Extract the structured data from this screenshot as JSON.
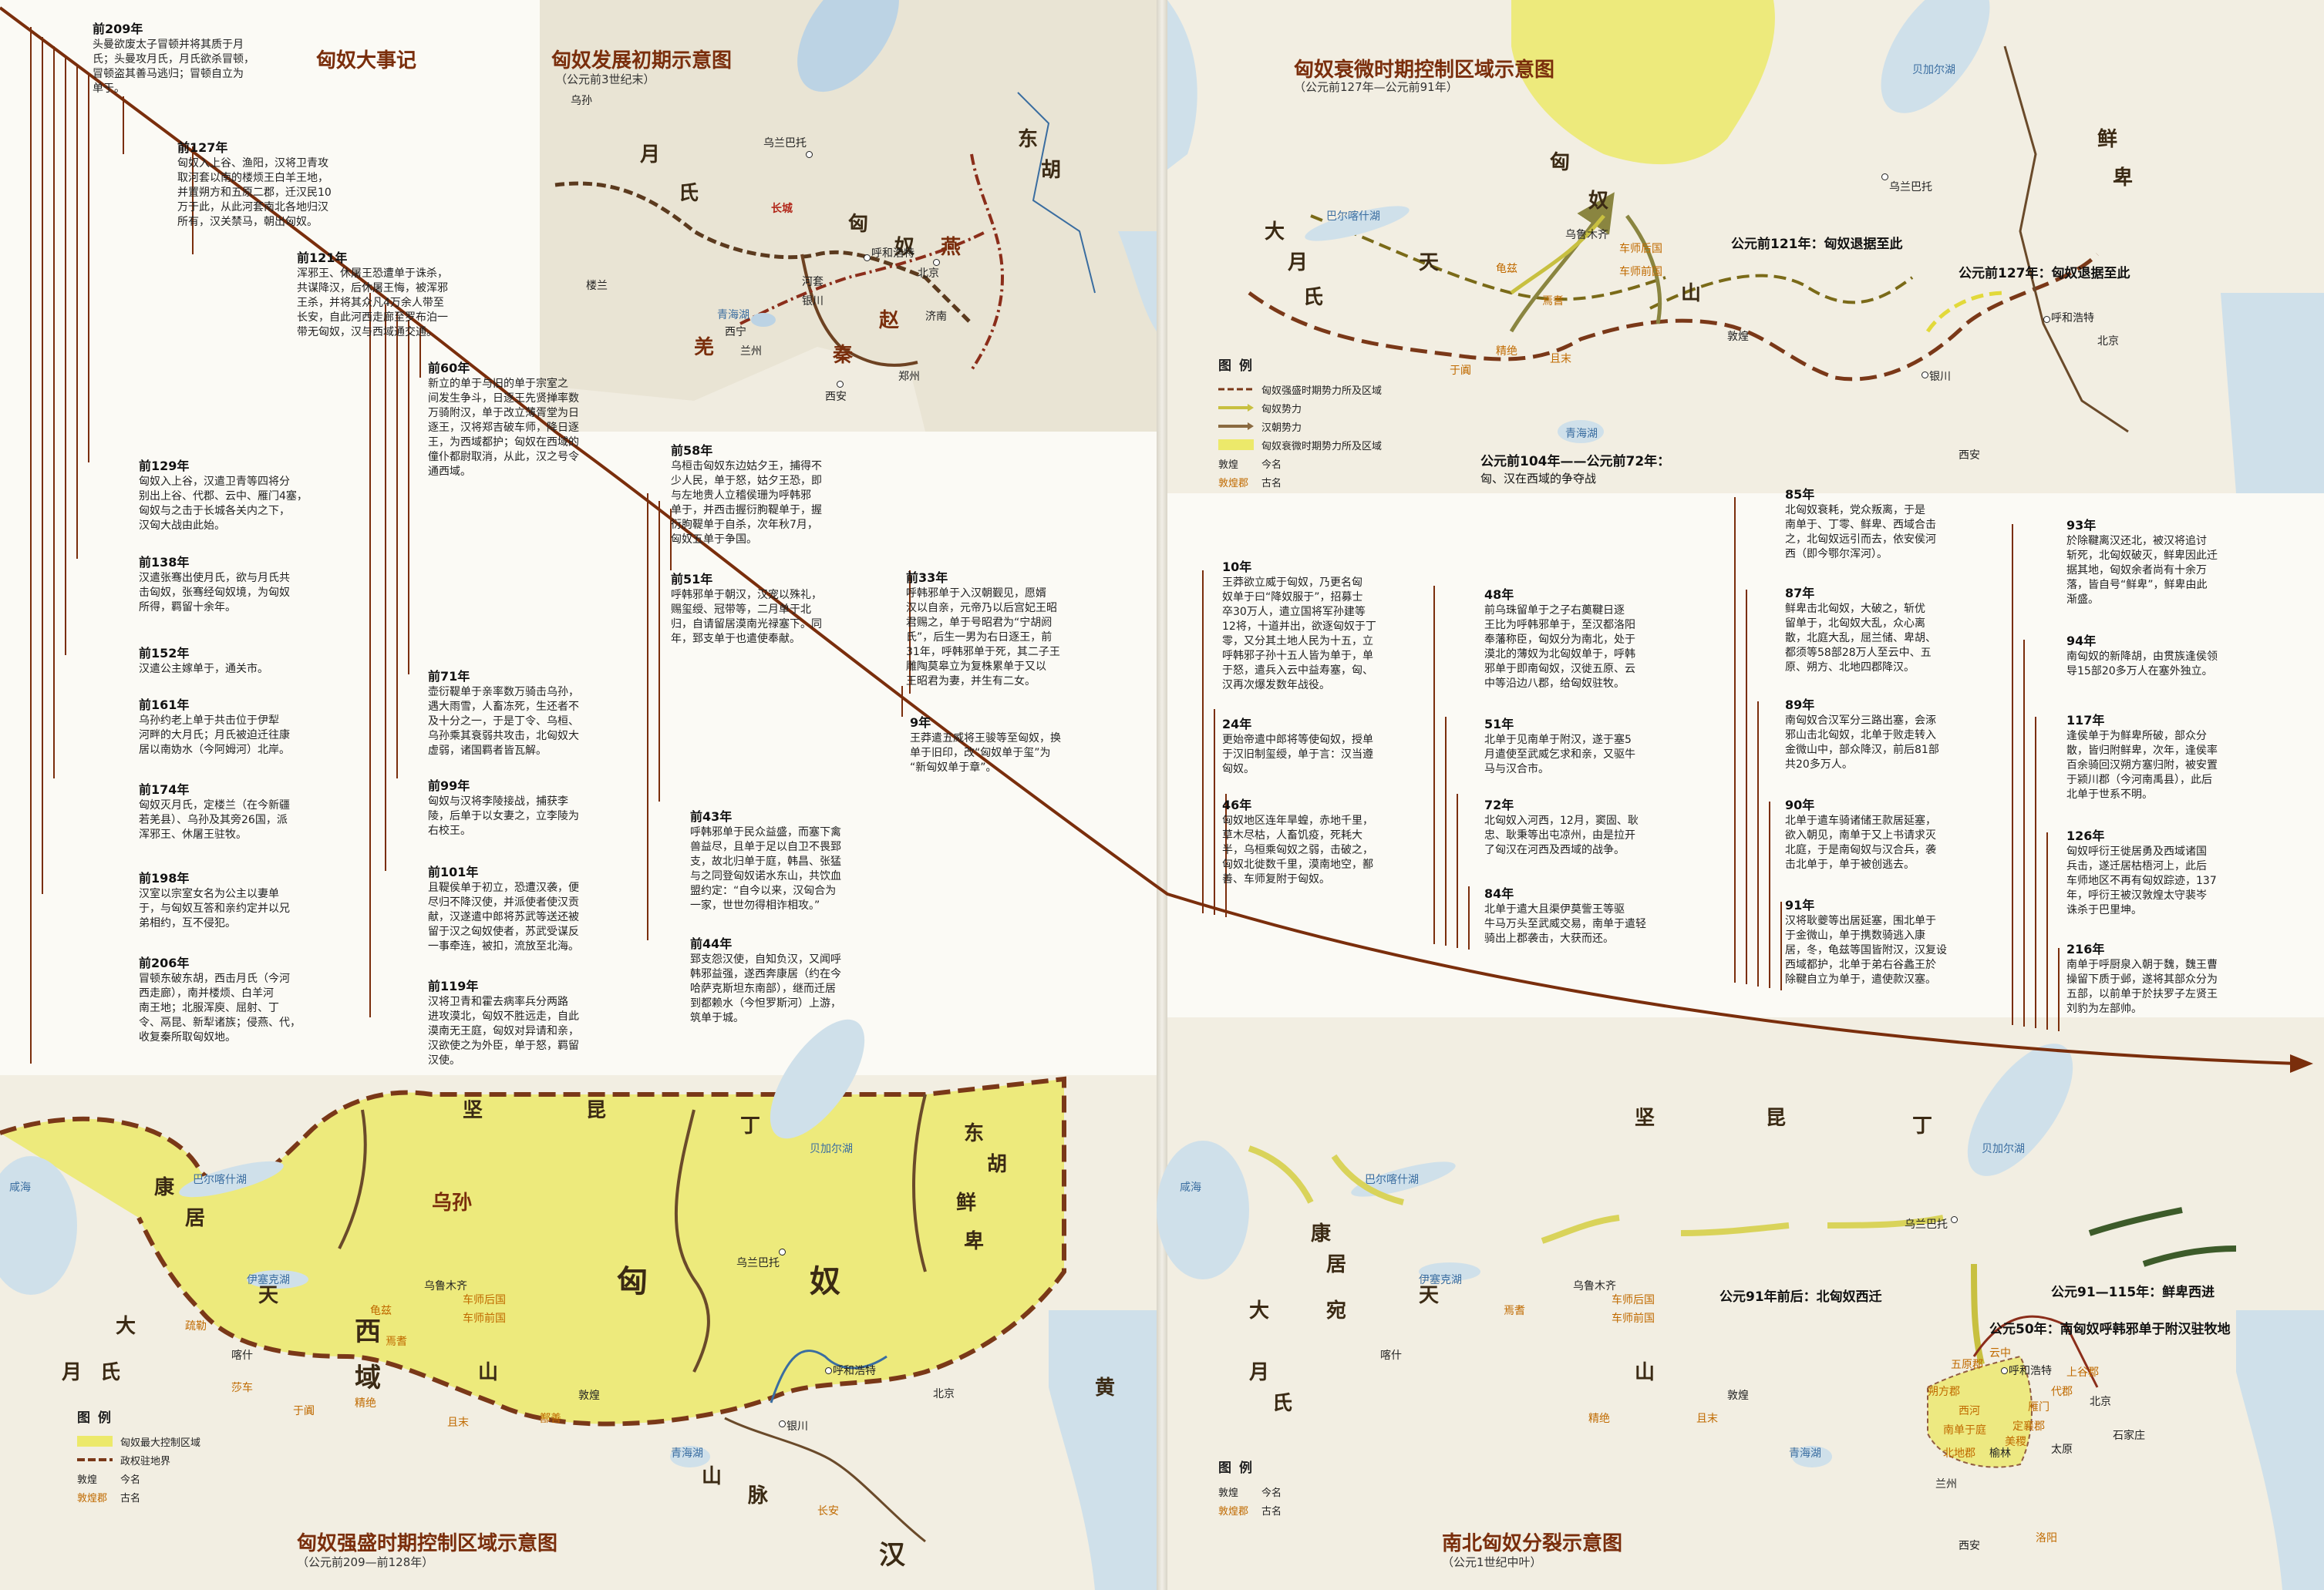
{
  "timeline": {
    "title": "匈奴大事记",
    "events": [
      {
        "year": "前209年",
        "text": "头曼欲废太子冒顿并将其质于月\n氏；头曼攻月氏，月氏欲杀冒顿，\n冒顿盗其善马逃归；冒顿自立为\n单于。"
      },
      {
        "year": "前127年",
        "text": "匈奴入上谷、渔阳，汉将卫青攻\n取河套以南的楼烦王白羊王地，\n并置朔方和五原二郡，迁汉民10\n万于此，从此河套南北各地归汉\n所有，汉关禁马，朝出匈奴。"
      },
      {
        "year": "前121年",
        "text": "浑邪王、休屠王恐遭单于诛杀，\n共谋降汉，后休屠王悔，被浑邪\n王杀，并将其众凡4万余人带至\n长安，自此河西走廊至罗布泊一\n带无匈奴，汉与西域通交通。"
      },
      {
        "year": "前129年",
        "text": "匈奴入上谷，汉遣卫青等四将分\n别出上谷、代郡、云中、雁门4塞，\n匈奴与之击于长城各关内之下，\n汉匈大战由此始。"
      },
      {
        "year": "前138年",
        "text": "汉遣张骞出使月氏，欲与月氏共\n击匈奴，张骞经匈奴境，为匈奴\n所得，羁留十余年。"
      },
      {
        "year": "前152年",
        "text": "汉遣公主嫁单于，通关市。"
      },
      {
        "year": "前161年",
        "text": "乌孙约老上单于共击位于伊犁\n河畔的大月氏；月氏被迫迁往康\n居以南妫水（今阿姆河）北岸。"
      },
      {
        "year": "前174年",
        "text": "匈奴灭月氏，定楼兰（在今新疆\n若羌县）、乌孙及其旁26国，派\n浑邪王、休屠王驻牧。"
      },
      {
        "year": "前198年",
        "text": "汉室以宗室女名为公主以妻单\n于，与匈奴互答和亲约定并以兄\n弟相约，互不侵犯。"
      },
      {
        "year": "前206年",
        "text": "冒顿东破东胡，西击月氏（今河\n西走廊），南并楼烦、白羊河\n南王地；北服浑庾、屈射、丁\n令、鬲昆、新犁诸族；侵燕、代，\n收复秦所取匈奴地。"
      },
      {
        "year": "前60年",
        "text": "新立的单于与旧的单于宗室之\n间发生争斗，日逐王先贤掸率数\n万骑附汉，单于改立薄胥堂为日\n逐王，汉将郑吉破车师，降日逐\n王，为西域都护；匈奴在西域的\n僮仆都尉取消，从此，汉之号令\n通西域。"
      },
      {
        "year": "前71年",
        "text": "壶衍鞮单于亲率数万骑击乌孙，\n遇大雨雪，人畜冻死，生还者不\n及十分之一，于是丁令、乌桓、\n乌孙乘其衰弱共攻击，北匈奴大\n虚弱，诸国羁者皆瓦解。"
      },
      {
        "year": "前99年",
        "text": "匈奴与汉将李陵接战，捕获李\n陵，后单于以女妻之，立李陵为\n右校王。"
      },
      {
        "year": "前101年",
        "text": "且鞮侯单于初立，恐遭汉袭，便\n尽归不降汉使，并派使者使汉贡\n献，汉遂遣中郎将苏武等送还被\n留于汉之匈奴使者，苏武受谋反\n一事牵连，被扣，流放至北海。"
      },
      {
        "year": "前119年",
        "text": "汉将卫青和霍去病率兵分两路\n进攻漠北，匈奴不胜远走，自此\n漠南无王庭，匈奴对异请和亲，\n汉欲使之为外臣，单于怒，羁留\n汉使。"
      },
      {
        "year": "前58年",
        "text": "乌桓击匈奴东边姑夕王，捕得不\n少人民，单于怒，姑夕王恐，即\n与左地贵人立稽侯珊为呼韩邪\n单于，并西击握衍朐鞮单于，握\n衍朐鞮单于自杀，次年秋7月，\n匈奴五单于争国。"
      },
      {
        "year": "前51年",
        "text": "呼韩邪单于朝汉，汉宠以殊礼，\n赐玺绶、冠带等，二月单于北\n归，自请留居漠南光禄塞下。同\n年，郅支单于也遣使奉献。"
      },
      {
        "year": "前43年",
        "text": "呼韩邪单于民众益盛，而塞下禽\n兽益尽，且单于足以自卫不畏郅\n支，故北归单于庭，韩昌、张猛\n与之同登匈奴诺水东山，共饮血\n盟约定：“自今以来，汉匈合为\n一家，世世勿得相诈相攻。”"
      },
      {
        "year": "前44年",
        "text": "郅支怨汉使，自知负汉，又闻呼\n韩邪益强，遂西奔康居（约在今\n哈萨克斯坦东南部），继而迁居\n到都赖水（今怛罗斯河）上游，\n筑单于城。"
      },
      {
        "year": "前33年",
        "text": "呼韩邪单于入汉朝觐见，愿婿\n汉以自亲，元帝乃以后宫妃王昭\n君赐之，单于号昭君为“宁胡阏\n氏”，后生一男为右日逐王，前\n31年，呼韩邪单于死，其二子王\n雕陶莫皋立为复株累单于又以\n王昭君为妻，并生有二女。"
      },
      {
        "year": "9年",
        "text": "王莽遣五威将王骏等至匈奴，换\n单于旧印，改“匈奴单于玺”为\n“新匈奴单于章”。"
      },
      {
        "year": "10年",
        "text": "王莽欲立威于匈奴，乃更名匈\n奴单于曰“降奴服于”，招募士\n卒30万人，遣立国将军孙建等\n12将，十道并出，欲逐匈奴于丁\n零，又分其土地人民为十五，立\n呼韩邪子孙十五人皆为单于，单\n于怒，遣兵入云中益寿塞，匈、\n汉再次爆发数年战役。"
      },
      {
        "year": "24年",
        "text": "更始帝遣中郎将等使匈奴，授单\n于汉旧制玺绶，单于言：汉当遵\n匈奴。"
      },
      {
        "year": "46年",
        "text": "匈奴地区连年旱蝗，赤地千里，\n草木尽枯，人畜饥疫，死耗大\n半，乌桓乘匈奴之弱，击破之，\n匈奴北徙数千里，漠南地空，鄯\n善、车师复附于匈奴。"
      },
      {
        "year": "48年",
        "text": "前乌珠留单于之子右薁鞬日逐\n王比为呼韩邪单于，至汉都洛阳\n奉藩称臣，匈奴分为南北，处于\n漠北的薄奴为北匈奴单于，呼韩\n邪单于即南匈奴，汉徙五原、云\n中等沿边八郡，给匈奴驻牧。"
      },
      {
        "year": "51年",
        "text": "北单于见南单于附汉，遂于塞5\n月遣使至武威乞求和亲，又驱牛\n马与汉合市。"
      },
      {
        "year": "72年",
        "text": "北匈奴入河西，12月，窦固、耿\n忠、耿秉等出屯凉州，由是拉开\n了匈汉在河西及西域的战争。"
      },
      {
        "year": "84年",
        "text": "北单于遣大且渠伊莫訾王等驱\n牛马万头至武威交易，南单于遣轻\n骑出上郡袭击，大获而还。"
      },
      {
        "year": "85年",
        "text": "北匈奴衰耗，党众叛离，于是\n南单于、丁零、鲜卑、西域合击\n之，北匈奴远引而去，依安侯河\n西（即今鄂尔浑河）。"
      },
      {
        "year": "87年",
        "text": "鲜卑击北匈奴，大破之，斩优\n留单于，北匈奴大乱，众心离\n散，北庭大乱，屈兰储、卑胡、\n都须等58部28万人至云中、五\n原、朔方、北地四郡降汉。"
      },
      {
        "year": "89年",
        "text": "南匈奴合汉军分三路出塞，会涿\n邪山击北匈奴，北单于败走转入\n金微山中，部众降汉，前后81部\n共20多万人。"
      },
      {
        "year": "90年",
        "text": "北单于遣车骑诸储王款居延塞，\n欲入朝见，南单于又上书请求灭\n北庭，于是南匈奴与汉合兵，袭\n击北单于，单于被创逃去。"
      },
      {
        "year": "91年",
        "text": "汉将耿夔等出居延塞，围北单于\n于金微山，单于携数骑逃入康\n居，冬，龟兹等国皆附汉，汉复设\n西域都护，北单于弟右谷蠡王於\n除鞬自立为单于，遣使款汉塞。"
      },
      {
        "year": "93年",
        "text": "於除鞬离汉还北，被汉将追讨\n斩死，北匈奴破灭，鲜卑因此迁\n据其地，匈奴余者尚有十余万\n落，皆自号“鲜卑”，鲜卑由此\n渐盛。"
      },
      {
        "year": "94年",
        "text": "南匈奴的新降胡，由贯族逢侯领\n导15部20多万人在塞外独立。"
      },
      {
        "year": "117年",
        "text": "逢侯单于为鲜卑所破，部众分\n散，皆归附鲜卑，次年，逢侯率\n百余骑回汉朔方塞归附，被安置\n于颍川郡（今河南禹县），此后\n北单于世系不明。"
      },
      {
        "year": "126年",
        "text": "匈奴呼衍王徙居勇及西域诸国\n兵击，遂迁居枯梧河上，此后\n车师地区不再有匈奴踪迹，137\n年，呼衍王被汉敦煌太守裴岑\n诛杀于巴里坤。"
      },
      {
        "year": "216年",
        "text": "南单于呼厨泉入朝于魏，魏王曹\n操留下质于邺，遂将其部众分为\n五部，以前单于於扶罗子左贤王\n刘豹为左部帅。"
      }
    ]
  },
  "maps": {
    "early": {
      "title": "匈奴发展初期示意图",
      "subtitle": "（公元前3世纪末）",
      "labels": [
        "匈",
        "奴",
        "东",
        "胡",
        "月",
        "氏",
        "乌孙",
        "楼兰",
        "乌兰巴托",
        "呼和浩特",
        "北京",
        "银川",
        "兰州",
        "西宁",
        "西安",
        "郑州",
        "济南",
        "燕",
        "赵",
        "秦",
        "羌",
        "长城",
        "河套",
        "青海湖"
      ]
    },
    "decline": {
      "title": "匈奴衰微时期控制区域示意图",
      "subtitle": "（公元前127年—公元前91年）",
      "anno1": "公元前121年：匈奴退据至此",
      "anno2": "公元前127年：匈奴退据至此",
      "anno3": "公元前104年——公元前72年：",
      "anno3b": "匈、汉在西域的争夺战",
      "labels": [
        "匈",
        "奴",
        "乌兰巴托",
        "乌鲁木齐",
        "车师后国",
        "车师前国",
        "天",
        "山",
        "龟兹",
        "焉耆",
        "精绝",
        "且末",
        "于阗",
        "敦煌",
        "银川",
        "呼和浩特",
        "北京",
        "西安",
        "鲜",
        "卑",
        "大",
        "月",
        "氏",
        "青海湖",
        "贝加尔湖",
        "巴尔喀什湖"
      ],
      "legend": {
        "title": "图例",
        "items": [
          "匈奴强盛时期势力所及区域",
          "匈奴势力",
          "汉朝势力",
          "匈奴衰微时期势力所及区域"
        ],
        "modern_sample": "敦煌",
        "modern": "今名",
        "ancient_sample": "敦煌郡",
        "ancient": "古名"
      }
    },
    "peak": {
      "title": "匈奴强盛时期控制区域示意图",
      "subtitle": "（公元前209—前128年）",
      "labels": [
        "坚",
        "昆",
        "丁",
        "贝加尔湖",
        "康",
        "居",
        "乌孙",
        "大",
        "月",
        "氏",
        "匈",
        "奴",
        "西",
        "域",
        "乌兰巴托",
        "乌鲁木齐",
        "车师后国",
        "车师前国",
        "天",
        "山",
        "龟兹",
        "焉耆",
        "疏勒",
        "喀什",
        "莎车",
        "于阗",
        "精绝",
        "且末",
        "鄯善",
        "敦煌",
        "银川",
        "呼和浩特",
        "北京",
        "长安",
        "汉",
        "东",
        "胡",
        "鲜",
        "卑",
        "咸海",
        "巴尔喀什湖",
        "伊塞克湖",
        "青海湖",
        "黄",
        "山",
        "脉"
      ],
      "legend": {
        "title": "图例",
        "items": [
          "匈奴最大控制区域",
          "政权驻地界"
        ],
        "modern_sample": "敦煌",
        "modern": "今名",
        "ancient_sample": "敦煌郡",
        "ancient": "古名"
      }
    },
    "split": {
      "title": "南北匈奴分裂示意图",
      "subtitle": "（公元1世纪中叶）",
      "anno1": "公元91年前后：北匈奴西迁",
      "anno2": "公元91—115年：鲜卑西进",
      "anno3": "公元50年：南匈奴呼韩邪单于附汉驻牧地",
      "labels": [
        "坚",
        "昆",
        "丁",
        "贝加尔湖",
        "乌兰巴托",
        "乌鲁木齐",
        "车师后国",
        "车师前国",
        "天",
        "山",
        "焉耆",
        "喀什",
        "精绝",
        "且末",
        "敦煌",
        "兰州",
        "西安",
        "洛阳",
        "北京",
        "太原",
        "石家庄",
        "呼和浩特",
        "五原郡",
        "云中",
        "朔方郡",
        "西河",
        "上谷郡",
        "代郡",
        "雁门",
        "定襄郡",
        "北地郡",
        "榆林",
        "南单于庭",
        "美稷",
        "大",
        "宛",
        "月",
        "氏",
        "康",
        "居",
        "咸海",
        "巴尔喀什湖",
        "伊塞克湖",
        "青海湖"
      ],
      "legend": {
        "title": "图例",
        "modern_sample": "敦煌",
        "modern": "今名",
        "ancient_sample": "敦煌郡",
        "ancient": "古名"
      }
    }
  },
  "colors": {
    "accent": "#7a2e0c",
    "territory": "#ece96a",
    "xiongnu_line": "#7a4a18",
    "han_line": "#8b3a1a",
    "sea": "#cfe0ea",
    "land": "#f2eee2"
  }
}
